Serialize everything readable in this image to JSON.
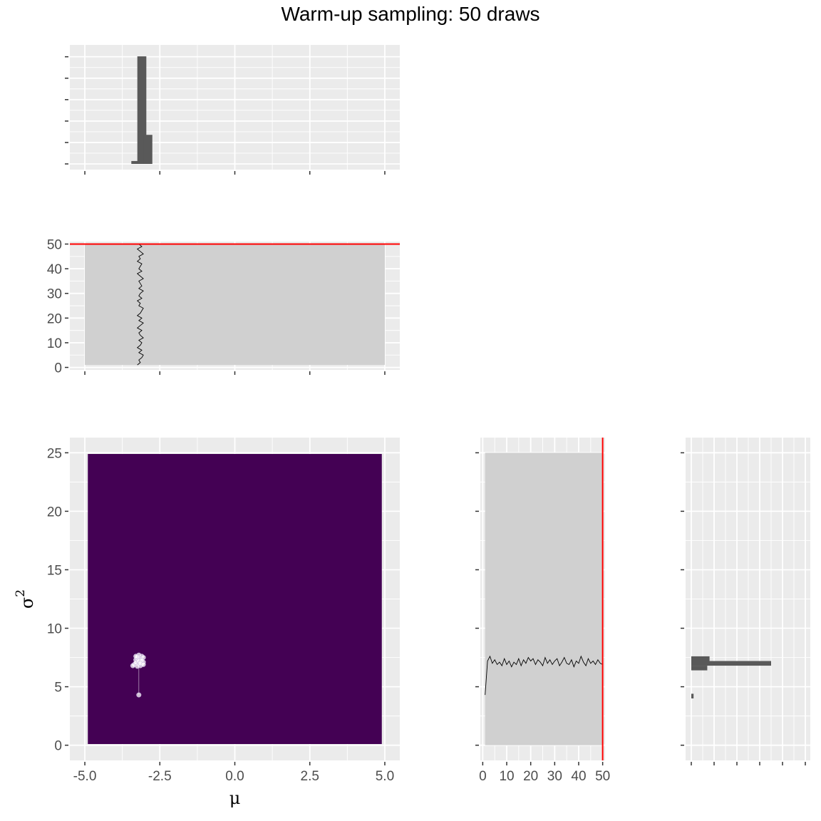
{
  "title": "Warm-up sampling: 50 draws",
  "colors": {
    "panel_bg": "#ebebeb",
    "grid": "#ffffff",
    "bar": "#595959",
    "trace_bg": "#d0d0d0",
    "heat_fill": "#440154",
    "sample_point": "#ffffff",
    "trace_line": "#000000",
    "iteration_line": "#ff0000",
    "tick_text": "#4d4d4d"
  },
  "chart_data": [
    {
      "id": "mu-histogram",
      "type": "bar",
      "title": "",
      "xlabel": "",
      "ylabel": "",
      "xlim": [
        -5.5,
        5.5
      ],
      "x_ticks": [
        -5.0,
        -2.5,
        0.0,
        2.5,
        5.0
      ],
      "x_tick_labels_shown": false,
      "bin_width": 0.3,
      "bins": [
        {
          "x": -3.3,
          "count": 1
        },
        {
          "x": -3.1,
          "count": 37
        },
        {
          "x": -2.9,
          "count": 10
        }
      ],
      "ylim": [
        0,
        38
      ]
    },
    {
      "id": "mu-trace",
      "type": "line",
      "title": "",
      "xlabel": "",
      "ylabel": "",
      "xlim": [
        -5.5,
        5.5
      ],
      "ylim": [
        -1,
        51
      ],
      "x_ticks": [
        -5.0,
        -2.5,
        0.0,
        2.5,
        5.0
      ],
      "x_tick_labels_shown": false,
      "y_ticks": [
        0,
        10,
        20,
        30,
        40,
        50
      ],
      "y_tick_labels": [
        "0",
        "10",
        "20",
        "30",
        "40",
        "50"
      ],
      "shaded_region": {
        "x": [
          -5.0,
          5.0
        ],
        "y": [
          1,
          50
        ]
      },
      "current_iteration": 50,
      "series": [
        {
          "x": [
            -3.25,
            -3.15,
            -3.2,
            -3.1,
            -3.05,
            -3.2,
            -3.1,
            -3.25,
            -3.15,
            -3.1,
            -3.2,
            -3.05,
            -3.15,
            -3.2,
            -3.1,
            -3.25,
            -3.15,
            -3.05,
            -3.2,
            -3.1,
            -3.25,
            -3.15,
            -3.1,
            -3.05,
            -3.2,
            -3.15,
            -3.25,
            -3.1,
            -3.2,
            -3.15,
            -3.05,
            -3.2,
            -3.1,
            -3.15,
            -3.2,
            -3.05,
            -3.15,
            -3.25,
            -3.1,
            -3.2,
            -3.15,
            -3.1,
            -3.25,
            -3.15,
            -3.2,
            -3.05,
            -3.15,
            -3.25,
            -3.1,
            -3.2
          ],
          "y": [
            1,
            2,
            3,
            4,
            5,
            6,
            7,
            8,
            9,
            10,
            11,
            12,
            13,
            14,
            15,
            16,
            17,
            18,
            19,
            20,
            21,
            22,
            23,
            24,
            25,
            26,
            27,
            28,
            29,
            30,
            31,
            32,
            33,
            34,
            35,
            36,
            37,
            38,
            39,
            40,
            41,
            42,
            43,
            44,
            45,
            46,
            47,
            48,
            49,
            50
          ]
        }
      ]
    },
    {
      "id": "joint-density",
      "type": "heatmap",
      "title": "",
      "xlabel": "μ",
      "ylabel": "σ",
      "ylabel_superscript": "2",
      "xlim": [
        -5.5,
        5.5
      ],
      "ylim": [
        -1.3,
        26.3
      ],
      "x_ticks": [
        -5.0,
        -2.5,
        0.0,
        2.5,
        5.0
      ],
      "x_tick_labels": [
        "-5.0",
        "-2.5",
        "0.0",
        "2.5",
        "5.0"
      ],
      "y_ticks": [
        0,
        5,
        10,
        15,
        20,
        25
      ],
      "y_tick_labels": [
        "0",
        "5",
        "10",
        "15",
        "20",
        "25"
      ],
      "fill_region": {
        "x": [
          -4.9,
          4.9
        ],
        "y": [
          0.1,
          24.9
        ]
      },
      "points": [
        {
          "x": -3.2,
          "y": 4.3
        },
        {
          "x": -3.2,
          "y": 7.0
        },
        {
          "x": -3.3,
          "y": 7.3
        },
        {
          "x": -3.1,
          "y": 7.6
        },
        {
          "x": -3.15,
          "y": 6.8
        },
        {
          "x": -3.25,
          "y": 7.4
        },
        {
          "x": -3.05,
          "y": 7.1
        },
        {
          "x": -3.35,
          "y": 6.9
        },
        {
          "x": -3.2,
          "y": 7.7
        },
        {
          "x": -3.1,
          "y": 6.95
        },
        {
          "x": -3.3,
          "y": 7.05
        },
        {
          "x": -3.15,
          "y": 7.35
        },
        {
          "x": -3.25,
          "y": 6.75
        },
        {
          "x": -3.05,
          "y": 7.5
        },
        {
          "x": -3.2,
          "y": 7.2
        },
        {
          "x": -3.4,
          "y": 6.8
        },
        {
          "x": -3.1,
          "y": 7.25
        },
        {
          "x": -3.25,
          "y": 7.55
        },
        {
          "x": -3.15,
          "y": 7.0
        },
        {
          "x": -3.3,
          "y": 7.6
        },
        {
          "x": -3.05,
          "y": 6.9
        }
      ]
    },
    {
      "id": "sigma2-trace",
      "type": "line",
      "title": "",
      "xlabel": "",
      "ylabel": "",
      "xlim": [
        -1,
        51
      ],
      "ylim": [
        -1.3,
        26.3
      ],
      "x_ticks": [
        0,
        10,
        20,
        30,
        40,
        50
      ],
      "x_tick_labels": [
        "0",
        "10",
        "20",
        "30",
        "40",
        "50"
      ],
      "y_ticks": [
        0,
        5,
        10,
        15,
        20,
        25
      ],
      "y_tick_labels_shown": false,
      "shaded_region": {
        "x": [
          1,
          50
        ],
        "y": [
          0,
          25
        ]
      },
      "current_iteration": 50,
      "series": [
        {
          "x": [
            1,
            2,
            3,
            4,
            5,
            6,
            7,
            8,
            9,
            10,
            11,
            12,
            13,
            14,
            15,
            16,
            17,
            18,
            19,
            20,
            21,
            22,
            23,
            24,
            25,
            26,
            27,
            28,
            29,
            30,
            31,
            32,
            33,
            34,
            35,
            36,
            37,
            38,
            39,
            40,
            41,
            42,
            43,
            44,
            45,
            46,
            47,
            48,
            49,
            50
          ],
          "y": [
            4.3,
            7.2,
            7.6,
            7.0,
            7.3,
            6.9,
            7.1,
            6.8,
            7.4,
            6.9,
            7.2,
            6.7,
            7.1,
            6.9,
            7.4,
            6.8,
            7.3,
            7.0,
            7.5,
            7.2,
            7.4,
            6.9,
            7.3,
            7.1,
            6.8,
            7.5,
            7.0,
            7.3,
            6.9,
            7.2,
            7.4,
            6.8,
            7.1,
            7.5,
            7.0,
            6.9,
            7.3,
            6.7,
            7.2,
            7.0,
            7.6,
            7.1,
            6.8,
            7.4,
            7.0,
            7.2,
            6.9,
            7.3,
            7.0,
            6.9
          ]
        }
      ]
    },
    {
      "id": "sigma2-histogram",
      "type": "bar",
      "orientation": "horizontal",
      "title": "",
      "xlabel": "",
      "ylabel": "",
      "ylim": [
        -1.3,
        26.3
      ],
      "y_ticks": [
        0,
        5,
        10,
        15,
        20,
        25
      ],
      "y_tick_labels_shown": false,
      "x_tick_labels_shown": false,
      "xlim": [
        -1,
        51
      ],
      "bin_width": 0.4,
      "bins": [
        {
          "y": 4.2,
          "count": 1
        },
        {
          "y": 6.6,
          "count": 7
        },
        {
          "y": 7.0,
          "count": 35
        },
        {
          "y": 7.4,
          "count": 8
        }
      ]
    }
  ]
}
